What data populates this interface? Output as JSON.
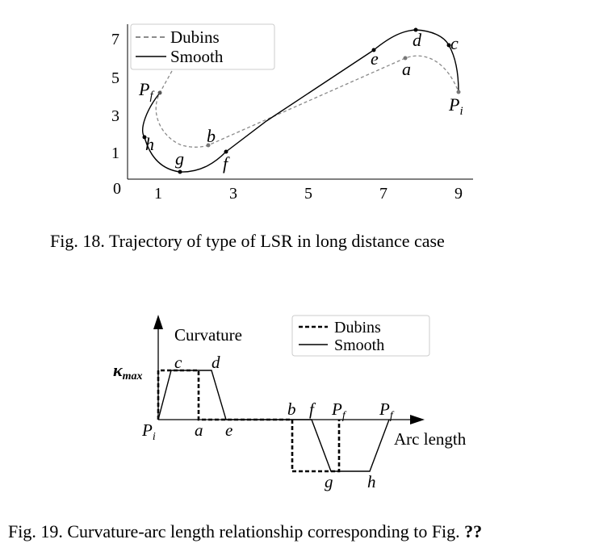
{
  "fig18": {
    "caption": "Fig. 18.  Trajectory of type of LSR in long distance case",
    "x_ticks": [
      "1",
      "3",
      "5",
      "7",
      "9"
    ],
    "y_ticks": [
      "7",
      "5",
      "3",
      "1",
      "0"
    ],
    "legend": {
      "dubins": "Dubins",
      "smooth": "Smooth"
    },
    "points": {
      "Pf": "P",
      "Pf_sub": "f",
      "Pi": "P",
      "Pi_sub": "i",
      "a": "a",
      "b": "b",
      "c": "c",
      "d": "d",
      "e": "e",
      "f": "f",
      "g": "g",
      "h": "h"
    }
  },
  "fig19": {
    "caption_prefix": "Fig. 19.  Curvature-arc length relationship corresponding to Fig. ",
    "caption_ref": "??",
    "y_axis_label": "Curvature",
    "x_axis_label": "Arc length",
    "kmax_symbol": "κ",
    "kmax_sub": "max",
    "legend": {
      "dubins": "Dubins",
      "smooth": "Smooth"
    },
    "labels": {
      "c": "c",
      "d": "d",
      "Pi": "P",
      "Pi_sub": "i",
      "a": "a",
      "e": "e",
      "b": "b",
      "f": "f",
      "Pf1": "P",
      "Pf1_sub": "f",
      "Pf2": "P",
      "Pf2_sub": "f",
      "g": "g",
      "h": "h"
    }
  }
}
